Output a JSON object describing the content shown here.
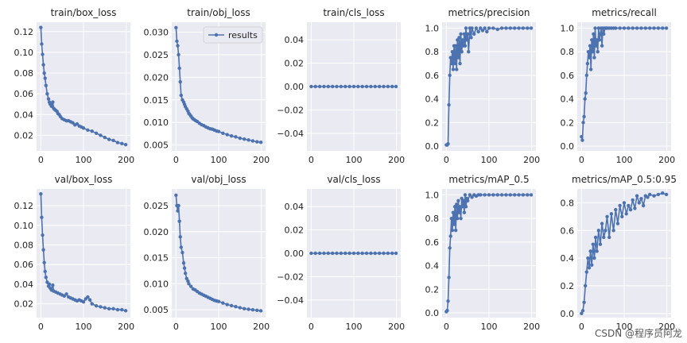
{
  "colors": {
    "series": "#4c72b0",
    "panel": "#eaeaf2",
    "grid": "#ffffff"
  },
  "watermark": "CSDN @程序员阿龙",
  "chart_data": [
    {
      "type": "line",
      "title": "train/box_loss",
      "series": [
        {
          "name": "results",
          "x": [
            0,
            2,
            4,
            6,
            8,
            10,
            12,
            15,
            18,
            20,
            22,
            25,
            28,
            30,
            32,
            35,
            38,
            40,
            43,
            46,
            50,
            55,
            60,
            65,
            70,
            75,
            80,
            85,
            90,
            95,
            100,
            110,
            120,
            130,
            140,
            150,
            160,
            170,
            180,
            190,
            199
          ],
          "y": [
            0.124,
            0.108,
            0.098,
            0.088,
            0.08,
            0.075,
            0.068,
            0.06,
            0.055,
            0.052,
            0.05,
            0.048,
            0.052,
            0.046,
            0.045,
            0.044,
            0.043,
            0.041,
            0.04,
            0.038,
            0.036,
            0.035,
            0.034,
            0.034,
            0.033,
            0.032,
            0.03,
            0.031,
            0.029,
            0.028,
            0.027,
            0.025,
            0.024,
            0.022,
            0.02,
            0.018,
            0.016,
            0.015,
            0.013,
            0.012,
            0.011
          ]
        }
      ],
      "xticks": [
        0,
        100,
        200
      ],
      "yticks": [
        "0.02",
        "0.04",
        "0.06",
        "0.08",
        "0.10",
        "0.12"
      ],
      "ytick_values": [
        0.02,
        0.04,
        0.06,
        0.08,
        0.1,
        0.12
      ],
      "ylim": [
        0.005,
        0.129
      ],
      "xlim": [
        -10,
        210
      ]
    },
    {
      "type": "line",
      "title": "train/obj_loss",
      "legend": "results",
      "series": [
        {
          "name": "results",
          "x": [
            0,
            2,
            4,
            6,
            8,
            10,
            12,
            15,
            18,
            20,
            22,
            25,
            28,
            30,
            32,
            35,
            38,
            40,
            43,
            46,
            50,
            55,
            60,
            65,
            70,
            75,
            80,
            85,
            90,
            95,
            100,
            110,
            120,
            130,
            140,
            150,
            160,
            170,
            180,
            190,
            199
          ],
          "y": [
            0.031,
            0.028,
            0.027,
            0.025,
            0.022,
            0.019,
            0.016,
            0.015,
            0.0145,
            0.014,
            0.0135,
            0.013,
            0.0125,
            0.012,
            0.0118,
            0.0114,
            0.011,
            0.0108,
            0.0106,
            0.0104,
            0.0102,
            0.0098,
            0.0095,
            0.0093,
            0.009,
            0.0088,
            0.0086,
            0.0085,
            0.0083,
            0.0081,
            0.008,
            0.0076,
            0.0073,
            0.007,
            0.0068,
            0.0065,
            0.0063,
            0.0061,
            0.0059,
            0.0057,
            0.0056
          ]
        }
      ],
      "xticks": [
        0,
        100,
        200
      ],
      "yticks": [
        "0.005",
        "0.010",
        "0.015",
        "0.020",
        "0.025",
        "0.030"
      ],
      "ytick_values": [
        0.005,
        0.01,
        0.015,
        0.02,
        0.025,
        0.03
      ],
      "ylim": [
        0.0037,
        0.0322
      ],
      "xlim": [
        -10,
        210
      ]
    },
    {
      "type": "line",
      "title": "train/cls_loss",
      "series": [
        {
          "name": "results",
          "x": [
            0,
            10,
            20,
            30,
            40,
            50,
            60,
            70,
            80,
            90,
            100,
            110,
            120,
            130,
            140,
            150,
            160,
            170,
            180,
            190,
            199
          ],
          "y": [
            0,
            0,
            0,
            0,
            0,
            0,
            0,
            0,
            0,
            0,
            0,
            0,
            0,
            0,
            0,
            0,
            0,
            0,
            0,
            0,
            0
          ]
        }
      ],
      "xticks": [
        0,
        100,
        200
      ],
      "yticks": [
        "−0.04",
        "−0.02",
        "0.00",
        "0.02",
        "0.04"
      ],
      "ytick_values": [
        -0.04,
        -0.02,
        0.0,
        0.02,
        0.04
      ],
      "ylim": [
        -0.055,
        0.055
      ],
      "xlim": [
        -10,
        210
      ]
    },
    {
      "type": "line",
      "title": "metrics/precision",
      "series": [
        {
          "name": "results",
          "x": [
            0,
            2,
            4,
            6,
            8,
            10,
            12,
            14,
            16,
            18,
            20,
            22,
            24,
            26,
            28,
            30,
            32,
            34,
            36,
            38,
            40,
            42,
            44,
            46,
            48,
            50,
            52,
            55,
            58,
            60,
            65,
            70,
            75,
            80,
            85,
            90,
            95,
            100,
            110,
            120,
            130,
            140,
            150,
            160,
            170,
            180,
            190,
            199
          ],
          "y": [
            0.01,
            0.01,
            0.02,
            0.35,
            0.6,
            0.75,
            0.7,
            0.8,
            0.65,
            0.85,
            0.7,
            0.85,
            0.65,
            0.9,
            0.75,
            0.92,
            0.7,
            0.95,
            0.8,
            0.9,
            0.85,
            0.95,
            0.85,
            1.0,
            0.9,
            0.95,
            0.8,
            1.0,
            0.92,
            1.0,
            0.95,
            1.0,
            0.97,
            1.0,
            0.98,
            1.0,
            0.97,
            1.0,
            1.0,
            0.99,
            1.0,
            1.0,
            1.0,
            1.0,
            1.0,
            1.0,
            1.0,
            1.0
          ]
        }
      ],
      "xticks": [
        0,
        100,
        200
      ],
      "yticks": [
        "0.0",
        "0.2",
        "0.4",
        "0.6",
        "0.8",
        "1.0"
      ],
      "ytick_values": [
        0,
        0.2,
        0.4,
        0.6,
        0.8,
        1.0
      ],
      "ylim": [
        -0.04,
        1.05
      ],
      "xlim": [
        -10,
        210
      ]
    },
    {
      "type": "line",
      "title": "metrics/recall",
      "series": [
        {
          "name": "results",
          "x": [
            0,
            2,
            4,
            6,
            8,
            10,
            12,
            14,
            16,
            18,
            20,
            22,
            24,
            26,
            28,
            30,
            32,
            34,
            36,
            38,
            40,
            42,
            44,
            46,
            48,
            50,
            52,
            55,
            58,
            60,
            65,
            70,
            75,
            80,
            90,
            100,
            110,
            120,
            130,
            140,
            150,
            160,
            170,
            180,
            190,
            199
          ],
          "y": [
            0.08,
            0.05,
            0.2,
            0.25,
            0.4,
            0.45,
            0.6,
            0.7,
            0.8,
            0.75,
            0.85,
            0.65,
            0.9,
            0.8,
            0.95,
            0.75,
            1.0,
            0.85,
            0.9,
            0.8,
            1.0,
            0.9,
            0.95,
            1.0,
            0.85,
            1.0,
            0.95,
            1.0,
            1.0,
            1.0,
            1.0,
            1.0,
            1.0,
            1.0,
            1.0,
            1.0,
            1.0,
            1.0,
            1.0,
            1.0,
            1.0,
            1.0,
            1.0,
            1.0,
            1.0,
            1.0
          ]
        }
      ],
      "xticks": [
        0,
        100,
        200
      ],
      "yticks": [
        "0.0",
        "0.2",
        "0.4",
        "0.6",
        "0.8",
        "1.0"
      ],
      "ytick_values": [
        0,
        0.2,
        0.4,
        0.6,
        0.8,
        1.0
      ],
      "ylim": [
        -0.04,
        1.05
      ],
      "xlim": [
        -10,
        210
      ]
    },
    {
      "type": "line",
      "title": "val/box_loss",
      "series": [
        {
          "name": "results",
          "x": [
            0,
            2,
            4,
            6,
            8,
            10,
            12,
            15,
            18,
            20,
            22,
            25,
            28,
            30,
            35,
            40,
            45,
            50,
            55,
            60,
            65,
            70,
            75,
            80,
            85,
            90,
            95,
            100,
            105,
            110,
            115,
            120,
            130,
            140,
            150,
            160,
            170,
            180,
            190,
            199
          ],
          "y": [
            0.132,
            0.108,
            0.09,
            0.075,
            0.062,
            0.053,
            0.047,
            0.042,
            0.038,
            0.04,
            0.036,
            0.034,
            0.039,
            0.033,
            0.032,
            0.031,
            0.03,
            0.029,
            0.028,
            0.03,
            0.027,
            0.026,
            0.025,
            0.024,
            0.023,
            0.024,
            0.023,
            0.022,
            0.025,
            0.027,
            0.024,
            0.02,
            0.018,
            0.017,
            0.016,
            0.015,
            0.015,
            0.014,
            0.014,
            0.013
          ]
        }
      ],
      "xticks": [
        0,
        100,
        200
      ],
      "yticks": [
        "0.02",
        "0.04",
        "0.06",
        "0.08",
        "0.10",
        "0.12"
      ],
      "ytick_values": [
        0.02,
        0.04,
        0.06,
        0.08,
        0.1,
        0.12
      ],
      "ylim": [
        0.006,
        0.137
      ],
      "xlim": [
        -10,
        210
      ]
    },
    {
      "type": "line",
      "title": "val/obj_loss",
      "series": [
        {
          "name": "results",
          "x": [
            0,
            2,
            4,
            6,
            8,
            10,
            12,
            15,
            18,
            20,
            22,
            25,
            28,
            30,
            35,
            40,
            45,
            50,
            55,
            60,
            65,
            70,
            75,
            80,
            85,
            90,
            95,
            100,
            110,
            120,
            130,
            140,
            150,
            160,
            170,
            180,
            190,
            199
          ],
          "y": [
            0.027,
            0.025,
            0.024,
            0.025,
            0.022,
            0.019,
            0.017,
            0.016,
            0.014,
            0.013,
            0.012,
            0.011,
            0.0105,
            0.01,
            0.0095,
            0.009,
            0.0088,
            0.0085,
            0.0082,
            0.008,
            0.0078,
            0.0076,
            0.0074,
            0.0072,
            0.007,
            0.0068,
            0.0067,
            0.0066,
            0.0063,
            0.006,
            0.0058,
            0.0056,
            0.0054,
            0.0052,
            0.0051,
            0.005,
            0.0049,
            0.0048
          ]
        }
      ],
      "xticks": [
        0,
        100,
        200
      ],
      "yticks": [
        "0.005",
        "0.010",
        "0.015",
        "0.020",
        "0.025"
      ],
      "ytick_values": [
        0.005,
        0.01,
        0.015,
        0.02,
        0.025
      ],
      "ylim": [
        0.0035,
        0.0282
      ],
      "xlim": [
        -10,
        210
      ]
    },
    {
      "type": "line",
      "title": "val/cls_loss",
      "series": [
        {
          "name": "results",
          "x": [
            0,
            10,
            20,
            30,
            40,
            50,
            60,
            70,
            80,
            90,
            100,
            110,
            120,
            130,
            140,
            150,
            160,
            170,
            180,
            190,
            199
          ],
          "y": [
            0,
            0,
            0,
            0,
            0,
            0,
            0,
            0,
            0,
            0,
            0,
            0,
            0,
            0,
            0,
            0,
            0,
            0,
            0,
            0,
            0
          ]
        }
      ],
      "xticks": [
        0,
        100,
        200
      ],
      "yticks": [
        "−0.04",
        "−0.02",
        "0.00",
        "0.02",
        "0.04"
      ],
      "ytick_values": [
        -0.04,
        -0.02,
        0.0,
        0.02,
        0.04
      ],
      "ylim": [
        -0.055,
        0.055
      ],
      "xlim": [
        -10,
        210
      ]
    },
    {
      "type": "line",
      "title": "metrics/mAP_0.5",
      "series": [
        {
          "name": "results",
          "x": [
            0,
            2,
            4,
            6,
            8,
            10,
            12,
            14,
            16,
            18,
            20,
            22,
            24,
            26,
            28,
            30,
            32,
            34,
            36,
            38,
            40,
            42,
            44,
            46,
            48,
            50,
            55,
            60,
            65,
            70,
            75,
            80,
            90,
            100,
            110,
            120,
            130,
            140,
            150,
            160,
            170,
            180,
            190,
            199
          ],
          "y": [
            0.01,
            0.02,
            0.1,
            0.3,
            0.55,
            0.65,
            0.8,
            0.7,
            0.85,
            0.75,
            0.9,
            0.7,
            0.92,
            0.8,
            0.95,
            0.85,
            0.9,
            0.8,
            0.97,
            0.9,
            0.95,
            0.85,
            1.0,
            0.9,
            0.97,
            0.95,
            1.0,
            0.98,
            1.0,
            0.99,
            1.0,
            1.0,
            1.0,
            1.0,
            1.0,
            1.0,
            1.0,
            1.0,
            1.0,
            1.0,
            1.0,
            1.0,
            1.0,
            1.0
          ]
        }
      ],
      "xticks": [
        0,
        100,
        200
      ],
      "yticks": [
        "0.0",
        "0.2",
        "0.4",
        "0.6",
        "0.8",
        "1.0"
      ],
      "ytick_values": [
        0,
        0.2,
        0.4,
        0.6,
        0.8,
        1.0
      ],
      "ylim": [
        -0.04,
        1.05
      ],
      "xlim": [
        -10,
        210
      ]
    },
    {
      "type": "line",
      "title": "metrics/mAP_0.5:0.95",
      "series": [
        {
          "name": "results",
          "x": [
            0,
            3,
            6,
            9,
            12,
            15,
            18,
            21,
            24,
            27,
            30,
            33,
            36,
            40,
            44,
            48,
            52,
            56,
            60,
            65,
            70,
            75,
            80,
            85,
            90,
            95,
            100,
            105,
            110,
            115,
            120,
            125,
            130,
            135,
            140,
            145,
            150,
            155,
            160,
            170,
            180,
            190,
            199
          ],
          "y": [
            0.0,
            0.02,
            0.08,
            0.2,
            0.3,
            0.4,
            0.33,
            0.45,
            0.35,
            0.5,
            0.4,
            0.55,
            0.45,
            0.6,
            0.5,
            0.65,
            0.55,
            0.6,
            0.7,
            0.55,
            0.72,
            0.6,
            0.75,
            0.65,
            0.78,
            0.7,
            0.8,
            0.72,
            0.78,
            0.75,
            0.82,
            0.76,
            0.85,
            0.8,
            0.83,
            0.78,
            0.85,
            0.84,
            0.86,
            0.85,
            0.86,
            0.87,
            0.86
          ]
        }
      ],
      "xticks": [
        0,
        100,
        200
      ],
      "yticks": [
        "0.0",
        "0.2",
        "0.4",
        "0.6",
        "0.8"
      ],
      "ytick_values": [
        0,
        0.2,
        0.4,
        0.6,
        0.8
      ],
      "ylim": [
        -0.03,
        0.9
      ],
      "xlim": [
        -10,
        210
      ]
    }
  ]
}
